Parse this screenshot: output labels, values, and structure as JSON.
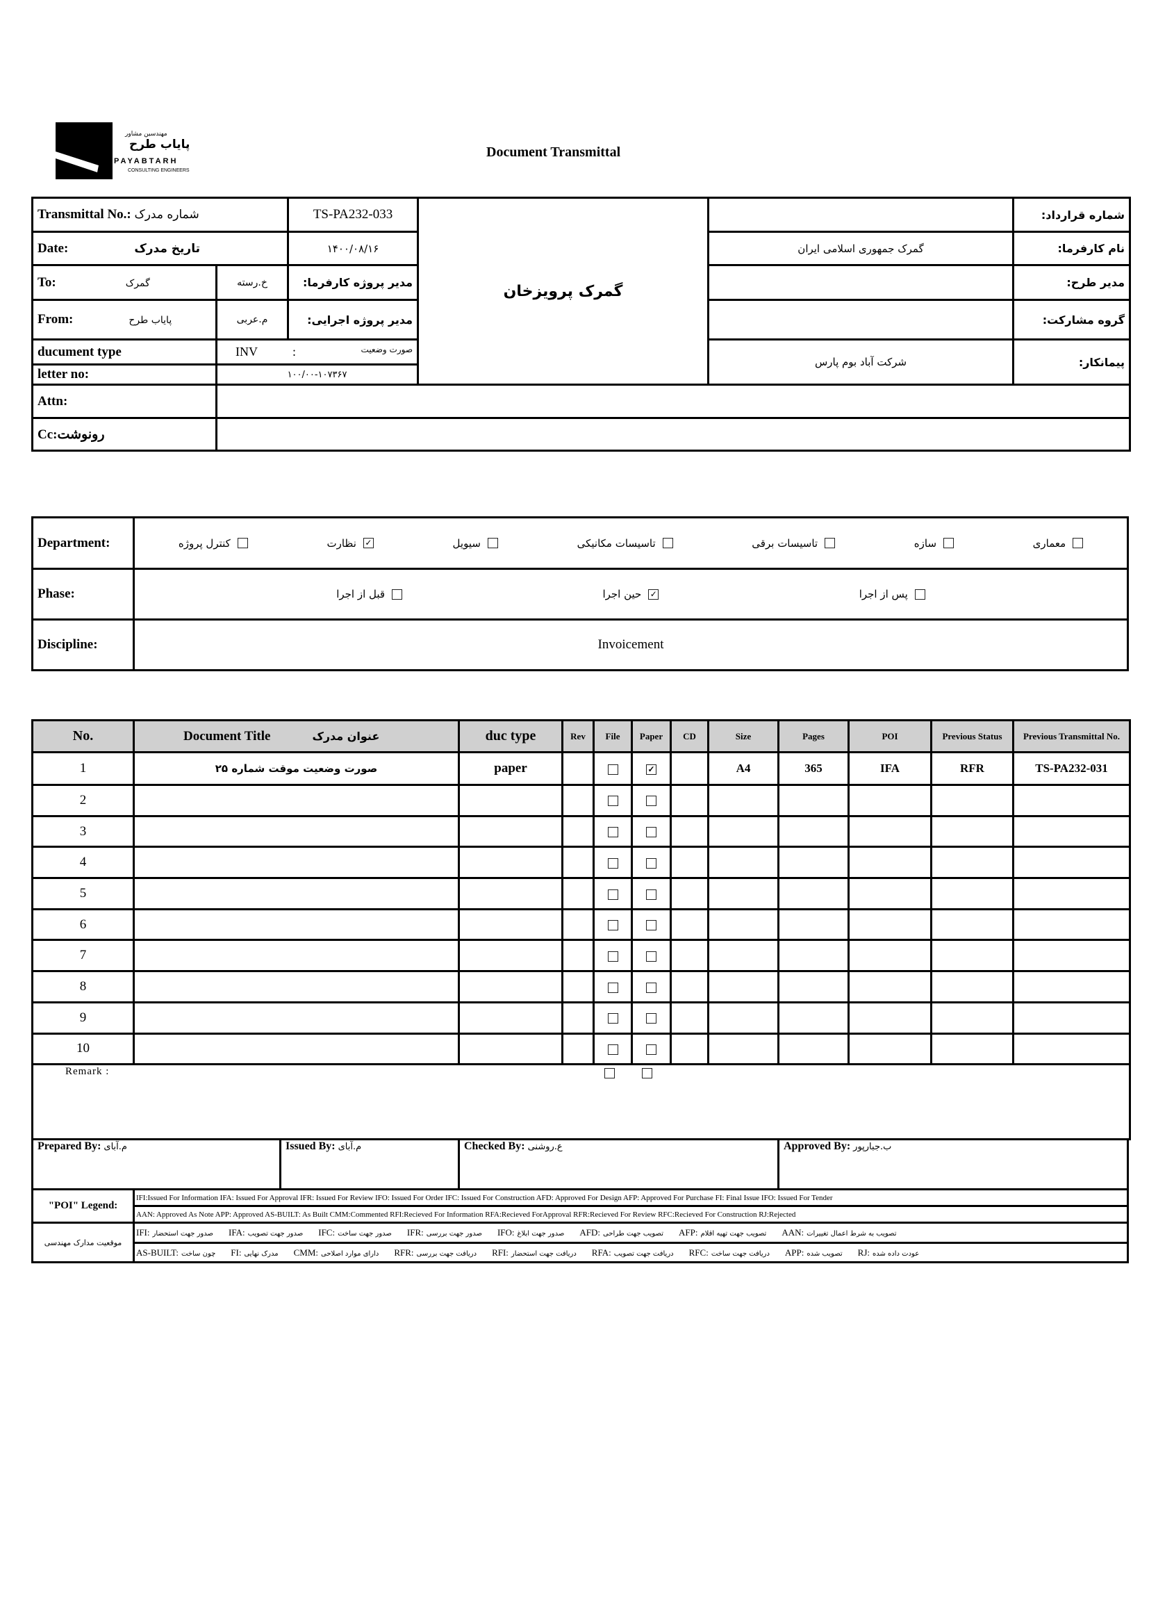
{
  "logo": {
    "text_fa_small": "مهندسین مشاور",
    "text_fa": "پایاب طرح",
    "text_en": "PAYABTARH",
    "subtitle": "CONSULTING ENGINEERS"
  },
  "title": "Document Transmittal",
  "header": {
    "transmittal_label": "Transmittal No.:",
    "transmittal_label_fa": "شماره مدرک",
    "transmittal_no": "TS-PA232-033",
    "date_label": "Date:",
    "date_label_fa": "تاریخ مدرک",
    "date": "۱۴۰۰/۰۸/۱۶",
    "to_label": "To:",
    "to_value": "گمرک",
    "to_person": "خ.رسته",
    "client_pm_label": "مدیر پروژه کارفرما:",
    "from_label": "From:",
    "from_value": "پایاب طرح",
    "from_person": "م.عربی",
    "exec_pm_label": "مدیر پروژه اجرایی:",
    "doctype_label": "ducument type",
    "doctype_code": "INV",
    "doctype_sep": ":",
    "doctype_fa": "صورت وضعیت",
    "letter_label": "letter no:",
    "letter_no": "۱۰۰/۰۰-۱۰۷۳۶۷",
    "attn_label": "Attn:",
    "attn_value": "",
    "cc_label": "Cc:رونوشت",
    "cc_value": "",
    "project_name": "گمرک پرویزخان",
    "contract_no_label": "شماره قرارداد:",
    "contract_no": "",
    "client_label": "نام کارفرما:",
    "client": "گمرک جمهوری اسلامی ایران",
    "plan_manager_label": "مدیر طرح:",
    "plan_manager": "",
    "partnership_label": "گروه مشارکت:",
    "partnership": "",
    "contractor_label": "پیمانکار:",
    "contractor": "شرکت آباد بوم پارس"
  },
  "department": {
    "label": "Department:",
    "options": [
      {
        "label": "معماری",
        "checked": false
      },
      {
        "label": "سازه",
        "checked": false
      },
      {
        "label": "تاسیسات برقی",
        "checked": false
      },
      {
        "label": "تاسیسات مکانیکی",
        "checked": false
      },
      {
        "label": "سیویل",
        "checked": false
      },
      {
        "label": "نظارت",
        "checked": true
      },
      {
        "label": "کنترل پروژه",
        "checked": false
      }
    ]
  },
  "phase": {
    "label": "Phase:",
    "options": [
      {
        "label": "پس از اجرا",
        "checked": false
      },
      {
        "label": "حین اجرا",
        "checked": true
      },
      {
        "label": "قبل از اجرا",
        "checked": false
      }
    ]
  },
  "discipline": {
    "label": "Discipline:",
    "value": "Invoicement"
  },
  "documents": {
    "headers": {
      "no": "No.",
      "title": "Document Title",
      "title_fa": "عنوان مدرک",
      "type": "duc type",
      "rev": "Rev",
      "file": "File",
      "paper": "Paper",
      "cd": "CD",
      "size": "Size",
      "pages": "Pages",
      "poi": "POI",
      "prev_status": "Previous Status",
      "prev_transmittal": "Previous Transmittal No."
    },
    "rows": [
      {
        "no": "1",
        "title": "صورت وضعیت موقت شماره ۲۵",
        "type": "paper",
        "rev": "",
        "file": false,
        "paper": true,
        "cd": "",
        "size": "A4",
        "pages": "365",
        "poi": "IFA",
        "prev_status": "RFR",
        "prev_transmittal": "TS-PA232-031"
      },
      {
        "no": "2",
        "file": false,
        "paper": false
      },
      {
        "no": "3",
        "file": false,
        "paper": false
      },
      {
        "no": "4",
        "file": false,
        "paper": false
      },
      {
        "no": "5",
        "file": false,
        "paper": false
      },
      {
        "no": "6",
        "file": false,
        "paper": false
      },
      {
        "no": "7",
        "file": false,
        "paper": false
      },
      {
        "no": "8",
        "file": false,
        "paper": false
      },
      {
        "no": "9",
        "file": false,
        "paper": false
      },
      {
        "no": "10",
        "file": false,
        "paper": false
      }
    ],
    "remark_label": "Remark :"
  },
  "signatures": {
    "prepared_label": "Prepared By:",
    "prepared": "م.آبای",
    "issued_label": "Issued By:",
    "issued": "م.آبای",
    "checked_label": "Checked By:",
    "checked": "ع.روشنی",
    "approved_label": "Approved By:",
    "approved": "ب.جبارپور"
  },
  "legend": {
    "poi_label": "\"POI\" Legend:",
    "poi_line1": "IFI:Issued For Information  IFA: Issued For Approval  IFR: Issued For Review   IFO: Issued For Order  IFC: Issued For Construction AFD: Approved For Design AFP: Approved For Purchase  FI: Final Issue  IFO: Issued For Tender",
    "poi_line2": "AAN: Approved As Note  APP: Approved  AS-BUILT: As Built CMM:Commented  RFI:Recieved For Information  RFA:Recieved ForApproval  RFR:Recieved For Review  RFC:Recieved For Construction  RJ:Rejected",
    "status_label": "موقعیت مدارک مهندسی",
    "status_line1": [
      {
        "code": "IFI:",
        "fa": "صدور جهت استحضار"
      },
      {
        "code": "IFA:",
        "fa": "صدور جهت تصویب"
      },
      {
        "code": "IFC:",
        "fa": "صدور جهت ساخت"
      },
      {
        "code": "IFR:",
        "fa": "صدور جهت بررسی"
      },
      {
        "code": "IFO:",
        "fa": "صدور جهت ابلاغ"
      },
      {
        "code": "AFD:",
        "fa": "تصویب جهت طراحی"
      },
      {
        "code": "AFP:",
        "fa": "تصویب جهت تهیه اقلام"
      },
      {
        "code": "AAN:",
        "fa": "تصویب به شرط اعمال تغییرات"
      }
    ],
    "status_line2": [
      {
        "code": "AS-BUILT:",
        "fa": "چون ساخت"
      },
      {
        "code": "FI:",
        "fa": "مدرک نهایی"
      },
      {
        "code": "CMM:",
        "fa": "دارای موارد اصلاحی"
      },
      {
        "code": "RFR:",
        "fa": "دریافت جهت بررسی"
      },
      {
        "code": "RFI:",
        "fa": "دریافت جهت استحضار"
      },
      {
        "code": "RFA:",
        "fa": "دریافت جهت تصویب"
      },
      {
        "code": "RFC:",
        "fa": "دریافت جهت ساخت"
      },
      {
        "code": "APP:",
        "fa": "تصویب شده"
      },
      {
        "code": "RJ:",
        "fa": "عودت داده شده"
      }
    ]
  }
}
